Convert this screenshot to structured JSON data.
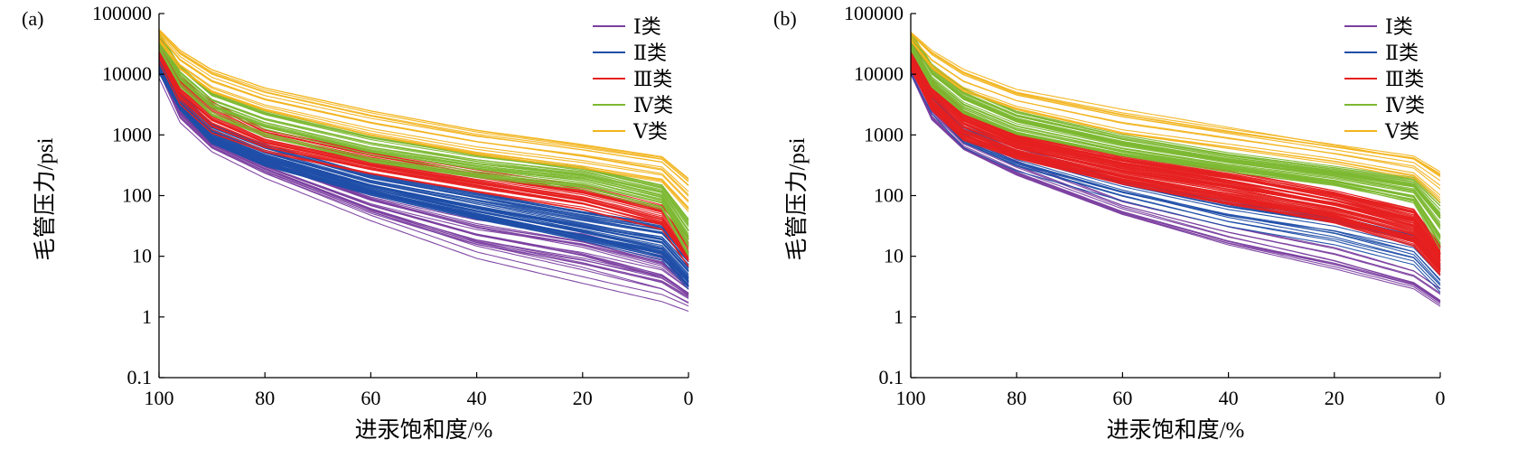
{
  "chart_data": [
    {
      "type": "line",
      "panel_label": "(a)",
      "xlabel": "进汞饱和度/%",
      "ylabel": "毛管压力/psi",
      "x_reversed": true,
      "xlim": [
        100,
        0
      ],
      "xticks": [
        100,
        80,
        60,
        40,
        20,
        0
      ],
      "ylog": true,
      "ylim": [
        0.1,
        100000
      ],
      "yticks": [
        "0.1",
        "1",
        "10",
        "100",
        "1000",
        "10000",
        "100000"
      ],
      "grid": false,
      "legend_position": "top-right",
      "series": [
        {
          "name": "Ⅰ类",
          "color": "#7b3fa0",
          "curves": 24,
          "x": [
            100,
            96,
            90,
            80,
            60,
            40,
            20,
            5,
            0
          ],
          "y_range_low": [
            8000,
            1500,
            500,
            180,
            35,
            8,
            3,
            1.5,
            1.1
          ],
          "y_range_high": [
            20000,
            3000,
            900,
            400,
            100,
            40,
            22,
            10,
            4
          ]
        },
        {
          "name": "Ⅱ类",
          "color": "#1f4ea8",
          "curves": 50,
          "x": [
            100,
            96,
            90,
            80,
            60,
            40,
            20,
            5,
            0
          ],
          "y_range_low": [
            10000,
            2500,
            700,
            300,
            100,
            40,
            18,
            9,
            3
          ],
          "y_range_high": [
            30000,
            5000,
            1500,
            700,
            220,
            110,
            55,
            35,
            12
          ]
        },
        {
          "name": "Ⅲ类",
          "color": "#e62020",
          "curves": 30,
          "x": [
            100,
            96,
            90,
            80,
            60,
            40,
            20,
            5,
            0
          ],
          "y_range_low": [
            15000,
            3000,
            1000,
            500,
            220,
            110,
            55,
            25,
            6
          ],
          "y_range_high": [
            45000,
            9000,
            3500,
            1200,
            500,
            250,
            140,
            70,
            20
          ]
        },
        {
          "name": "Ⅳ类",
          "color": "#7cb832",
          "curves": 30,
          "x": [
            100,
            96,
            90,
            80,
            60,
            40,
            20,
            5,
            0
          ],
          "y_range_low": [
            25000,
            6000,
            2000,
            900,
            350,
            200,
            130,
            60,
            10
          ],
          "y_range_high": [
            50000,
            14000,
            5000,
            2500,
            1000,
            500,
            300,
            150,
            40
          ]
        },
        {
          "name": "Ⅴ类",
          "color": "#f2b41e",
          "curves": 15,
          "x": [
            100,
            96,
            90,
            80,
            60,
            40,
            20,
            5,
            0
          ],
          "y_range_low": [
            35000,
            12000,
            5000,
            2500,
            1000,
            500,
            300,
            180,
            60
          ],
          "y_range_high": [
            55000,
            25000,
            12000,
            6000,
            2500,
            1200,
            700,
            450,
            200
          ]
        }
      ]
    },
    {
      "type": "line",
      "panel_label": "(b)",
      "xlabel": "进汞饱和度/%",
      "ylabel": "毛管压力/psi",
      "x_reversed": true,
      "xlim": [
        100,
        0
      ],
      "xticks": [
        100,
        80,
        60,
        40,
        20,
        0
      ],
      "ylog": true,
      "ylim": [
        0.1,
        100000
      ],
      "yticks": [
        "0.1",
        "1",
        "10",
        "100",
        "1000",
        "10000",
        "100000"
      ],
      "grid": false,
      "legend_position": "top-right",
      "series": [
        {
          "name": "Ⅰ类",
          "color": "#7b3fa0",
          "curves": 12,
          "x": [
            100,
            96,
            90,
            80,
            60,
            40,
            20,
            5,
            0
          ],
          "y_range_low": [
            8000,
            1500,
            500,
            180,
            40,
            12,
            5,
            2.5,
            1.3
          ],
          "y_range_high": [
            20000,
            3000,
            900,
            400,
            90,
            35,
            15,
            6,
            3
          ]
        },
        {
          "name": "Ⅱ类",
          "color": "#1f4ea8",
          "curves": 20,
          "x": [
            100,
            96,
            90,
            80,
            60,
            40,
            20,
            5,
            0
          ],
          "y_range_low": [
            10000,
            2200,
            600,
            250,
            80,
            30,
            15,
            7,
            2.5
          ],
          "y_range_high": [
            25000,
            5000,
            1500,
            600,
            200,
            90,
            50,
            25,
            8
          ]
        },
        {
          "name": "Ⅲ类",
          "color": "#e62020",
          "curves": 70,
          "x": [
            100,
            96,
            90,
            80,
            60,
            40,
            20,
            5,
            0
          ],
          "y_range_low": [
            12000,
            2500,
            800,
            400,
            150,
            70,
            35,
            15,
            5
          ],
          "y_range_high": [
            40000,
            8000,
            2500,
            1000,
            450,
            250,
            120,
            60,
            15
          ]
        },
        {
          "name": "Ⅳ类",
          "color": "#7cb832",
          "curves": 40,
          "x": [
            100,
            96,
            90,
            80,
            60,
            40,
            20,
            5,
            0
          ],
          "y_range_low": [
            25000,
            6000,
            2200,
            1000,
            450,
            250,
            150,
            80,
            15
          ],
          "y_range_high": [
            50000,
            15000,
            6000,
            2500,
            1000,
            500,
            300,
            200,
            80
          ]
        },
        {
          "name": "Ⅴ类",
          "color": "#f2b41e",
          "curves": 12,
          "x": [
            100,
            96,
            90,
            80,
            60,
            40,
            20,
            5,
            0
          ],
          "y_range_low": [
            35000,
            12000,
            5000,
            2500,
            1000,
            600,
            350,
            200,
            80
          ],
          "y_range_high": [
            50000,
            25000,
            12000,
            5500,
            2500,
            1300,
            700,
            450,
            250
          ]
        }
      ]
    }
  ]
}
